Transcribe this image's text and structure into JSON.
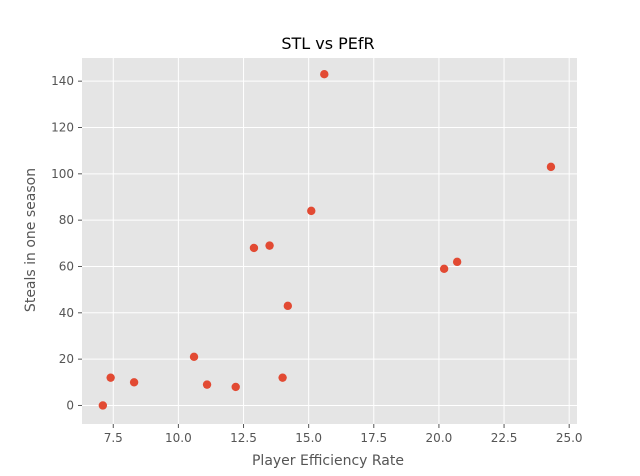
{
  "chart_data": {
    "type": "scatter",
    "title": "STL vs PEfR",
    "xlabel": "Player Efficiency Rate",
    "ylabel": "Steals in one season",
    "xlim": [
      6.3,
      25.3
    ],
    "ylim": [
      -8,
      150
    ],
    "x_ticks": [
      7.5,
      10.0,
      12.5,
      15.0,
      17.5,
      20.0,
      22.5,
      25.0
    ],
    "x_tick_labels": [
      "7.5",
      "10.0",
      "12.5",
      "15.0",
      "17.5",
      "20.0",
      "22.5",
      "25.0"
    ],
    "y_ticks": [
      0,
      20,
      40,
      60,
      80,
      100,
      120,
      140
    ],
    "y_tick_labels": [
      "0",
      "20",
      "40",
      "60",
      "80",
      "100",
      "120",
      "140"
    ],
    "grid": true,
    "background_color": "#e5e5e5",
    "grid_color": "#ffffff",
    "marker_color": "#e24a33",
    "points": [
      {
        "x": 7.1,
        "y": 0
      },
      {
        "x": 7.4,
        "y": 12
      },
      {
        "x": 8.3,
        "y": 10
      },
      {
        "x": 10.6,
        "y": 21
      },
      {
        "x": 11.1,
        "y": 9
      },
      {
        "x": 12.2,
        "y": 8
      },
      {
        "x": 12.9,
        "y": 68
      },
      {
        "x": 13.5,
        "y": 69
      },
      {
        "x": 14.0,
        "y": 12
      },
      {
        "x": 14.2,
        "y": 43
      },
      {
        "x": 15.1,
        "y": 84
      },
      {
        "x": 15.6,
        "y": 143
      },
      {
        "x": 20.2,
        "y": 59
      },
      {
        "x": 20.7,
        "y": 62
      },
      {
        "x": 24.3,
        "y": 103
      }
    ]
  }
}
